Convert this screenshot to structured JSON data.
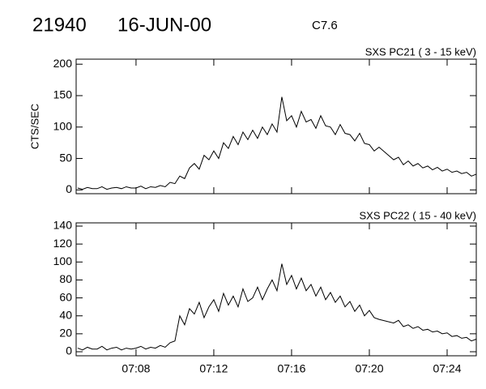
{
  "header": {
    "id": "21940",
    "date": "16-JUN-00",
    "flare_class": "C7.6"
  },
  "chart_data": [
    {
      "type": "line",
      "title": "SXS PC21  (  3 - 15 keV)",
      "ylabel": "CTS/SEC",
      "x": [
        425,
        425.25,
        425.5,
        425.75,
        426,
        426.25,
        426.5,
        426.75,
        427,
        427.25,
        427.5,
        427.75,
        428,
        428.25,
        428.5,
        428.75,
        429,
        429.25,
        429.5,
        429.75,
        430,
        430.25,
        430.5,
        430.75,
        431,
        431.25,
        431.5,
        431.75,
        432,
        432.25,
        432.5,
        432.75,
        433,
        433.25,
        433.5,
        433.75,
        434,
        434.25,
        434.5,
        434.75,
        435,
        435.25,
        435.5,
        435.75,
        436,
        436.25,
        436.5,
        436.75,
        437,
        437.25,
        437.5,
        437.75,
        438,
        438.25,
        438.5,
        438.75,
        439,
        439.25,
        439.5,
        439.75,
        440,
        440.25,
        440.5,
        441.25,
        441.5,
        441.75,
        442,
        442.25,
        442.5,
        442.75,
        443,
        443.25,
        443.5,
        443.75,
        444,
        444.25,
        444.5,
        444.75,
        445,
        445.25,
        445.5
      ],
      "series": [
        {
          "color": "#000000",
          "values": [
            3,
            1,
            4,
            2,
            2,
            5,
            1,
            3,
            4,
            2,
            5,
            3,
            3,
            6,
            2,
            5,
            4,
            7,
            5,
            12,
            10,
            22,
            18,
            35,
            42,
            33,
            55,
            48,
            62,
            50,
            75,
            66,
            85,
            72,
            92,
            80,
            95,
            82,
            100,
            88,
            105,
            92,
            148,
            110,
            118,
            100,
            125,
            108,
            112,
            98,
            118,
            102,
            100,
            88,
            104,
            90,
            88,
            78,
            90,
            74,
            72,
            62,
            68,
            48,
            52,
            40,
            46,
            38,
            42,
            35,
            38,
            32,
            36,
            30,
            33,
            28,
            30,
            26,
            28,
            22,
            25
          ]
        }
      ],
      "xlim": [
        424.92,
        445.5
      ],
      "xticks": [
        {
          "value": 428,
          "label": "07:08"
        },
        {
          "value": 432,
          "label": "07:12"
        },
        {
          "value": 436,
          "label": "07:16"
        },
        {
          "value": 440,
          "label": "07:20"
        },
        {
          "value": 444,
          "label": "07:24"
        }
      ],
      "ylim": [
        -6,
        208
      ],
      "yticks": [
        0,
        50,
        100,
        150,
        200
      ]
    },
    {
      "type": "line",
      "title": "SXS PC22  ( 15 - 40 keV)",
      "x": [
        425,
        425.25,
        425.5,
        425.75,
        426,
        426.25,
        426.5,
        426.75,
        427,
        427.25,
        427.5,
        427.75,
        428,
        428.25,
        428.5,
        428.75,
        429,
        429.25,
        429.5,
        429.75,
        430,
        430.25,
        430.5,
        430.75,
        431,
        431.25,
        431.5,
        431.75,
        432,
        432.25,
        432.5,
        432.75,
        433,
        433.25,
        433.5,
        433.75,
        434,
        434.25,
        434.5,
        434.75,
        435,
        435.25,
        435.5,
        435.75,
        436,
        436.25,
        436.5,
        436.75,
        437,
        437.25,
        437.5,
        437.75,
        438,
        438.25,
        438.5,
        438.75,
        439,
        439.25,
        439.5,
        439.75,
        440,
        440.25,
        440.5,
        441.25,
        441.5,
        441.75,
        442,
        442.25,
        442.5,
        442.75,
        443,
        443.25,
        443.5,
        443.75,
        444,
        444.25,
        444.5,
        444.75,
        445,
        445.25,
        445.5
      ],
      "series": [
        {
          "color": "#000000",
          "values": [
            4,
            2,
            5,
            3,
            3,
            6,
            2,
            4,
            5,
            2,
            4,
            3,
            4,
            6,
            3,
            5,
            4,
            7,
            5,
            10,
            12,
            40,
            30,
            48,
            42,
            55,
            38,
            50,
            58,
            45,
            65,
            52,
            62,
            50,
            70,
            56,
            60,
            72,
            58,
            70,
            80,
            68,
            98,
            75,
            85,
            70,
            82,
            68,
            75,
            62,
            72,
            58,
            66,
            55,
            62,
            50,
            56,
            45,
            52,
            40,
            46,
            38,
            36,
            32,
            35,
            28,
            30,
            26,
            28,
            24,
            25,
            22,
            23,
            20,
            21,
            17,
            18,
            15,
            16,
            12,
            14
          ]
        }
      ],
      "xlim": [
        424.92,
        445.5
      ],
      "xticks": [
        {
          "value": 428,
          "label": "07:08"
        },
        {
          "value": 432,
          "label": "07:12"
        },
        {
          "value": 436,
          "label": "07:16"
        },
        {
          "value": 440,
          "label": "07:20"
        },
        {
          "value": 444,
          "label": "07:24"
        }
      ],
      "ylim": [
        -4.5,
        143.6
      ],
      "yticks": [
        0,
        20,
        40,
        60,
        80,
        100,
        120,
        140
      ]
    }
  ]
}
